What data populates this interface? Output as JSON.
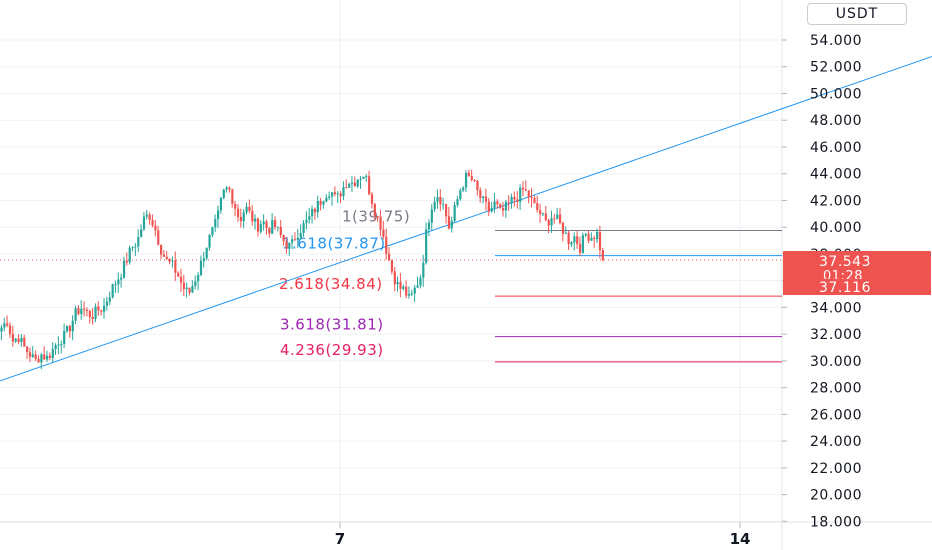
{
  "axis": {
    "unit_label": "USDT",
    "y_tick_labels": [
      "54.000",
      "52.000",
      "50.000",
      "48.000",
      "46.000",
      "44.000",
      "42.000",
      "40.000",
      "38.000",
      "36.000",
      "34.000",
      "32.000",
      "30.000",
      "28.000",
      "26.000",
      "24.000",
      "22.000",
      "20.000",
      "18.000"
    ],
    "x_tick_labels": [
      "7",
      "14"
    ]
  },
  "price_badges": {
    "last_price": "37.543",
    "countdown": "01:28",
    "second_price": "37.116"
  },
  "colors": {
    "up": "#26a69a",
    "down": "#ef5350",
    "trendline": "#2196f3",
    "fib_1": "#787b86",
    "fib_1618": "#2196f3",
    "fib_2618": "#f23645",
    "fib_3618": "#9c27b0",
    "fib_4236": "#e91e63"
  },
  "chart_data": {
    "type": "candlestick",
    "ylim": [
      17,
      56
    ],
    "y_ticks": [
      54,
      52,
      50,
      48,
      46,
      44,
      42,
      40,
      38,
      36,
      34,
      32,
      30,
      28,
      26,
      24,
      22,
      20,
      18
    ],
    "fib_levels": [
      {
        "ratio": "1",
        "price": 39.75,
        "label": "1(39.75)",
        "color_key": "fib_1"
      },
      {
        "ratio": "1.618",
        "price": 37.87,
        "label": "1.618(37.87)",
        "color_key": "fib_1618"
      },
      {
        "ratio": "2.618",
        "price": 34.84,
        "label": "2.618(34.84)",
        "color_key": "fib_2618"
      },
      {
        "ratio": "3.618",
        "price": 31.81,
        "label": "3.618(31.81)",
        "color_key": "fib_3618"
      },
      {
        "ratio": "4.236",
        "price": 29.93,
        "label": "4.236(29.93)",
        "color_key": "fib_4236"
      }
    ],
    "last_price": 37.543,
    "trendline": [
      {
        "bar": 0,
        "price": 28.5
      },
      {
        "bar": 345,
        "price": 54.1
      }
    ],
    "close_series": [
      32.5,
      33.0,
      31.5,
      31.8,
      31.0,
      30.5,
      30.0,
      30.5,
      30.2,
      30.8,
      31.5,
      31.8,
      32.5,
      33.5,
      34.0,
      33.6,
      33.4,
      33.8,
      34.0,
      35.0,
      35.8,
      36.5,
      37.5,
      38.5,
      39.0,
      40.5,
      41.0,
      40.0,
      38.5,
      37.5,
      37.2,
      36.5,
      35.5,
      35.0,
      36.0,
      37.0,
      38.5,
      39.5,
      40.5,
      42.5,
      43.0,
      41.8,
      40.5,
      41.5,
      40.8,
      40.0,
      40.5,
      39.8,
      40.2,
      39.5,
      38.8,
      38.5,
      39.5,
      40.0,
      40.5,
      41.2,
      41.8,
      42.5,
      42.8,
      42.0,
      42.8,
      43.5,
      43.3,
      43.8,
      44.0,
      42.5,
      41.0,
      40.0,
      38.0,
      36.5,
      35.5,
      35.3,
      34.5,
      35.5,
      36.5,
      40.0,
      42.0,
      42.5,
      41.5,
      39.8,
      41.5,
      43.0,
      43.8,
      43.5,
      42.5,
      41.8,
      41.2,
      41.8,
      41.0,
      41.5,
      42.0,
      42.3,
      42.8,
      42.3,
      41.5,
      41.0,
      40.3,
      40.8,
      40.5,
      39.8,
      39.0,
      39.3,
      38.5,
      39.5,
      39.3,
      39.5,
      37.543
    ]
  }
}
